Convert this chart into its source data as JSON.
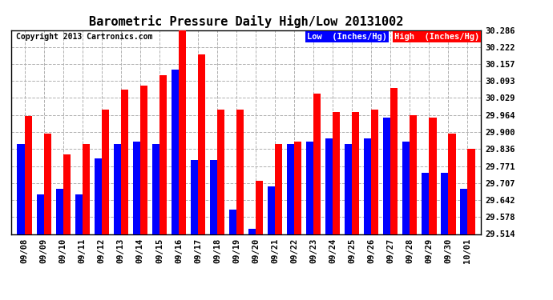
{
  "title": "Barometric Pressure Daily High/Low 20131002",
  "copyright": "Copyright 2013 Cartronics.com",
  "dates": [
    "09/08",
    "09/09",
    "09/10",
    "09/11",
    "09/12",
    "09/13",
    "09/14",
    "09/15",
    "09/16",
    "09/17",
    "09/18",
    "09/19",
    "09/20",
    "09/21",
    "09/22",
    "09/23",
    "09/24",
    "09/25",
    "09/26",
    "09/27",
    "09/28",
    "09/29",
    "09/30",
    "10/01"
  ],
  "low_values": [
    29.855,
    29.665,
    29.685,
    29.665,
    29.8,
    29.855,
    29.865,
    29.855,
    30.135,
    29.795,
    29.795,
    29.605,
    29.535,
    29.695,
    29.855,
    29.865,
    29.875,
    29.855,
    29.875,
    29.955,
    29.865,
    29.745,
    29.745,
    29.685
  ],
  "high_values": [
    29.96,
    29.895,
    29.815,
    29.855,
    29.985,
    30.06,
    30.075,
    30.115,
    30.285,
    30.195,
    29.985,
    29.985,
    29.715,
    29.855,
    29.865,
    30.045,
    29.975,
    29.975,
    29.985,
    30.065,
    29.965,
    29.955,
    29.895,
    29.835
  ],
  "low_color": "#0000ff",
  "high_color": "#ff0000",
  "bg_color": "#ffffff",
  "grid_color": "#b0b0b0",
  "ylim_min": 29.514,
  "ylim_max": 30.286,
  "yticks": [
    29.514,
    29.578,
    29.642,
    29.707,
    29.771,
    29.836,
    29.9,
    29.964,
    30.029,
    30.093,
    30.157,
    30.222,
    30.286
  ],
  "bar_width": 0.38,
  "title_fontsize": 11,
  "tick_fontsize": 7.5,
  "legend_low_label": "Low  (Inches/Hg)",
  "legend_high_label": "High  (Inches/Hg)"
}
